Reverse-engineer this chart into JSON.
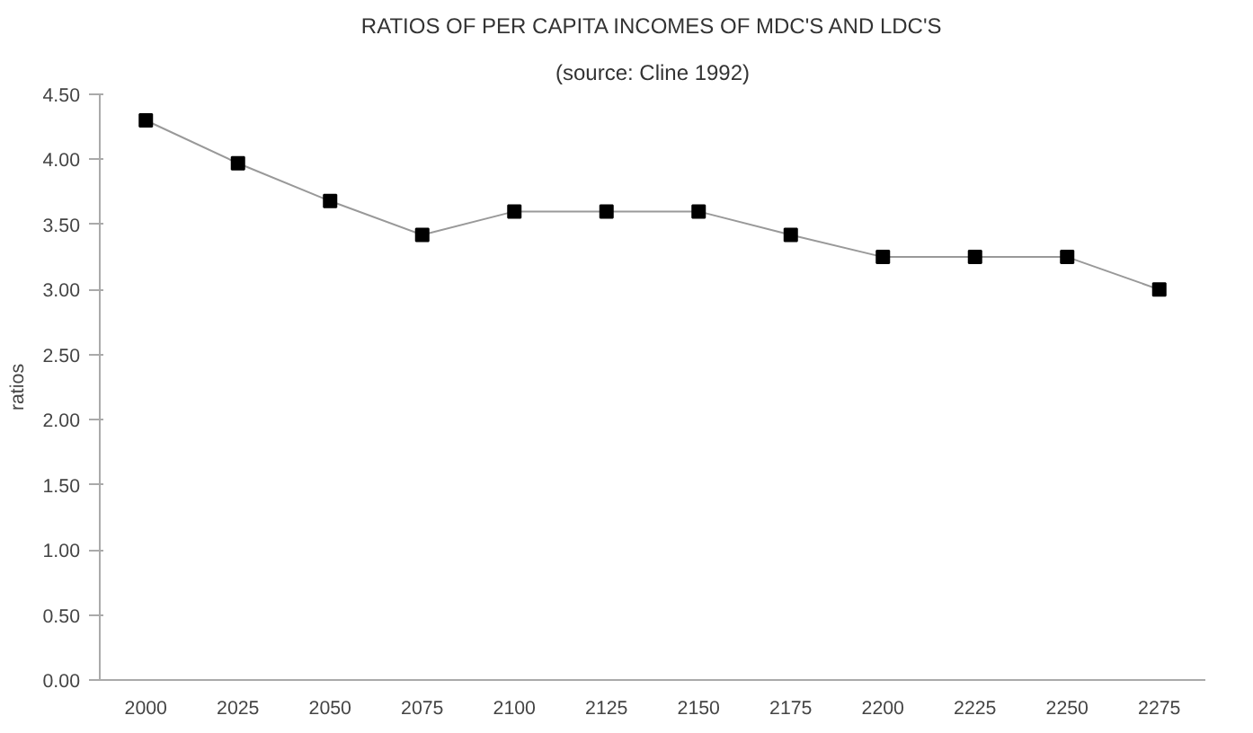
{
  "chart_data": {
    "type": "line",
    "title": "RATIOS OF PER CAPITA INCOMES OF MDC'S AND LDC'S",
    "subtitle": "(source: Cline 1992)",
    "ylabel": "ratios",
    "categories": [
      "2000",
      "2025",
      "2050",
      "2075",
      "2100",
      "2125",
      "2150",
      "2175",
      "2200",
      "2225",
      "2250",
      "2275"
    ],
    "series": [
      {
        "color": "#000000",
        "values": [
          4.3,
          3.97,
          3.68,
          3.42,
          3.6,
          3.6,
          3.6,
          3.42,
          3.25,
          3.25,
          3.25,
          3.0
        ]
      }
    ],
    "ylim": [
      0,
      4.5
    ],
    "yticks": [
      {
        "value": 0,
        "label": "0.00"
      },
      {
        "value": 0.5,
        "label": "0.50"
      },
      {
        "value": 1,
        "label": "1.00"
      },
      {
        "value": 1.5,
        "label": "1.50"
      },
      {
        "value": 2,
        "label": "2.00"
      },
      {
        "value": 2.5,
        "label": "2.50"
      },
      {
        "value": 3,
        "label": "3.00"
      },
      {
        "value": 3.5,
        "label": "3.50"
      },
      {
        "value": 4,
        "label": "4.00"
      },
      {
        "value": 4.5,
        "label": "4.50"
      }
    ],
    "marker": "square",
    "line_style": "solid",
    "grid": false
  }
}
